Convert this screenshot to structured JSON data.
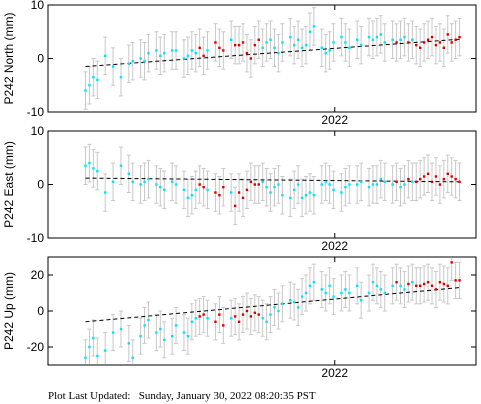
{
  "footer": {
    "label": "Plot Last Updated:",
    "timestamp": "Sunday, January 30, 2022 08:20:35 PST"
  },
  "colors": {
    "early": "#00e5ff",
    "recent": "#dd0000",
    "errorbar": "#c8c8c8",
    "trend": "#000000"
  },
  "chart_data": [
    {
      "type": "scatter",
      "ylabel": "P242 North (mm)",
      "xtick": "2022",
      "ylim": [
        -10,
        10
      ],
      "yticks": [
        -10,
        0,
        10
      ],
      "x_tick_position": 0.67,
      "trend": [
        -1.5,
        3.6
      ],
      "error": 3.5,
      "x": [
        0.03,
        0.04,
        0.05,
        0.06,
        0.08,
        0.1,
        0.12,
        0.14,
        0.15,
        0.17,
        0.18,
        0.19,
        0.21,
        0.22,
        0.23,
        0.25,
        0.26,
        0.28,
        0.29,
        0.3,
        0.31,
        0.32,
        0.33,
        0.34,
        0.36,
        0.37,
        0.38,
        0.4,
        0.41,
        0.42,
        0.43,
        0.44,
        0.45,
        0.46,
        0.47,
        0.48,
        0.49,
        0.5,
        0.51,
        0.52,
        0.53,
        0.55,
        0.56,
        0.57,
        0.58,
        0.59,
        0.6,
        0.61,
        0.63,
        0.64,
        0.65,
        0.66,
        0.68,
        0.69,
        0.7,
        0.72,
        0.73,
        0.75,
        0.76,
        0.77,
        0.78,
        0.79,
        0.81,
        0.82,
        0.83,
        0.84,
        0.85,
        0.86,
        0.87,
        0.88,
        0.89,
        0.9,
        0.91,
        0.92,
        0.93,
        0.94,
        0.95,
        0.96,
        0.97,
        0.98
      ],
      "y": [
        -6,
        -5,
        -3.5,
        -4,
        0.5,
        -1.5,
        -3.5,
        -1,
        -0.5,
        0,
        -0.5,
        1,
        1.5,
        0.5,
        1,
        1.5,
        1.5,
        0,
        0.5,
        1.5,
        1,
        2,
        0.5,
        1.5,
        3,
        2,
        1.5,
        3.5,
        2.5,
        2.5,
        3,
        1,
        0,
        2.5,
        3.5,
        2,
        3,
        3.5,
        2,
        1,
        3,
        4,
        2.5,
        3.5,
        2,
        2.5,
        5,
        6,
        2,
        1,
        1.5,
        3,
        4,
        3,
        2,
        3.5,
        2.5,
        4,
        3.5,
        4,
        4.5,
        3,
        3.5,
        3,
        3.5,
        4,
        3,
        3.5,
        2.5,
        2,
        3,
        3.5,
        4,
        2.5,
        3,
        2,
        4.5,
        3,
        3.5,
        4
      ],
      "groups": [
        "early",
        "early",
        "early",
        "early",
        "early",
        "early",
        "early",
        "early",
        "early",
        "early",
        "early",
        "early",
        "early",
        "early",
        "early",
        "early",
        "early",
        "early",
        "early",
        "early",
        "early",
        "recent",
        "recent",
        "early",
        "recent",
        "recent",
        "recent",
        "early",
        "recent",
        "recent",
        "recent",
        "recent",
        "recent",
        "recent",
        "recent",
        "early",
        "early",
        "early",
        "early",
        "early",
        "early",
        "early",
        "early",
        "early",
        "early",
        "early",
        "early",
        "early",
        "early",
        "early",
        "early",
        "early",
        "early",
        "early",
        "early",
        "early",
        "early",
        "early",
        "early",
        "early",
        "early",
        "early",
        "early",
        "recent",
        "early",
        "early",
        "recent",
        "early",
        "recent",
        "recent",
        "recent",
        "recent",
        "recent",
        "recent",
        "recent",
        "recent",
        "recent",
        "recent",
        "recent",
        "recent"
      ]
    },
    {
      "type": "scatter",
      "ylabel": "P242 East (mm)",
      "xtick": "2022",
      "ylim": [
        -10,
        10
      ],
      "yticks": [
        -10,
        0,
        10
      ],
      "x_tick_position": 0.67,
      "trend": [
        1.2,
        0.5
      ],
      "error": 3.5,
      "x": [
        0.03,
        0.04,
        0.05,
        0.06,
        0.08,
        0.1,
        0.12,
        0.14,
        0.15,
        0.17,
        0.18,
        0.19,
        0.21,
        0.22,
        0.23,
        0.25,
        0.26,
        0.28,
        0.29,
        0.3,
        0.31,
        0.32,
        0.33,
        0.34,
        0.36,
        0.37,
        0.38,
        0.4,
        0.41,
        0.42,
        0.43,
        0.44,
        0.45,
        0.46,
        0.47,
        0.48,
        0.49,
        0.5,
        0.51,
        0.52,
        0.53,
        0.55,
        0.56,
        0.57,
        0.58,
        0.59,
        0.6,
        0.61,
        0.63,
        0.64,
        0.65,
        0.66,
        0.68,
        0.69,
        0.7,
        0.72,
        0.73,
        0.75,
        0.76,
        0.77,
        0.78,
        0.79,
        0.81,
        0.82,
        0.83,
        0.84,
        0.85,
        0.86,
        0.87,
        0.88,
        0.89,
        0.9,
        0.91,
        0.92,
        0.93,
        0.94,
        0.95,
        0.96,
        0.97,
        0.98
      ],
      "y": [
        3.5,
        4,
        3,
        2.5,
        -1.5,
        0.5,
        3.5,
        2,
        0.5,
        0,
        0.5,
        1,
        0,
        -0.5,
        -1,
        0.5,
        0,
        -1,
        -2.5,
        -2,
        -1,
        0,
        -0.5,
        -1,
        -1.5,
        -2,
        -0.5,
        -1.5,
        -4,
        -1.5,
        -2.5,
        -1,
        0.5,
        0,
        0,
        0.5,
        -0.5,
        -1.5,
        -0.5,
        0,
        -2,
        -2.5,
        -1,
        0,
        -2.5,
        -2,
        -1.5,
        -2,
        0,
        0.5,
        0,
        -1,
        -1.5,
        -0.5,
        0,
        0,
        0.5,
        -0.5,
        0,
        0,
        1,
        0.5,
        0,
        0.5,
        -0.5,
        0,
        1,
        0.5,
        0.5,
        1,
        1.5,
        2,
        0.5,
        1.5,
        0,
        1,
        2,
        1.5,
        1,
        0.5
      ],
      "groups": [
        "early",
        "early",
        "early",
        "early",
        "early",
        "early",
        "early",
        "early",
        "early",
        "early",
        "early",
        "early",
        "early",
        "early",
        "early",
        "early",
        "early",
        "early",
        "early",
        "early",
        "early",
        "recent",
        "recent",
        "early",
        "recent",
        "recent",
        "recent",
        "early",
        "recent",
        "recent",
        "recent",
        "recent",
        "recent",
        "recent",
        "recent",
        "early",
        "early",
        "early",
        "early",
        "early",
        "early",
        "early",
        "early",
        "early",
        "early",
        "early",
        "early",
        "early",
        "early",
        "early",
        "early",
        "early",
        "early",
        "early",
        "early",
        "early",
        "early",
        "early",
        "early",
        "early",
        "early",
        "early",
        "early",
        "recent",
        "early",
        "early",
        "recent",
        "early",
        "recent",
        "recent",
        "recent",
        "recent",
        "recent",
        "recent",
        "recent",
        "recent",
        "recent",
        "recent",
        "recent",
        "recent"
      ]
    },
    {
      "type": "scatter",
      "ylabel": "P242 Up (mm)",
      "xtick": "2022",
      "ylim": [
        -30,
        30
      ],
      "yticks": [
        -20,
        0,
        20
      ],
      "x_tick_position": 0.67,
      "trend": [
        -6,
        13
      ],
      "error": 10,
      "x": [
        0.03,
        0.04,
        0.05,
        0.06,
        0.08,
        0.1,
        0.12,
        0.14,
        0.15,
        0.17,
        0.18,
        0.19,
        0.21,
        0.22,
        0.23,
        0.25,
        0.26,
        0.28,
        0.29,
        0.3,
        0.31,
        0.32,
        0.33,
        0.34,
        0.36,
        0.37,
        0.38,
        0.4,
        0.41,
        0.42,
        0.43,
        0.44,
        0.45,
        0.46,
        0.47,
        0.48,
        0.49,
        0.5,
        0.51,
        0.52,
        0.53,
        0.55,
        0.56,
        0.57,
        0.58,
        0.59,
        0.6,
        0.61,
        0.63,
        0.64,
        0.65,
        0.66,
        0.68,
        0.69,
        0.7,
        0.72,
        0.73,
        0.75,
        0.76,
        0.77,
        0.78,
        0.79,
        0.81,
        0.82,
        0.83,
        0.84,
        0.85,
        0.86,
        0.87,
        0.88,
        0.89,
        0.9,
        0.91,
        0.92,
        0.93,
        0.94,
        0.95,
        0.96,
        0.97,
        0.98
      ],
      "y": [
        -26,
        -20,
        -15,
        -25,
        -22,
        -12,
        -10,
        -18,
        -26,
        -14,
        -8,
        -5,
        -12,
        -10,
        -16,
        -14,
        -8,
        -12,
        -14,
        -6,
        -4,
        -3,
        -2,
        -4,
        -6,
        -2,
        -8,
        -4,
        -3,
        -6,
        -2,
        0,
        -3,
        -1,
        -2,
        -4,
        -6,
        -2,
        2,
        0,
        4,
        6,
        5,
        2,
        8,
        10,
        14,
        16,
        12,
        10,
        14,
        8,
        10,
        12,
        10,
        14,
        6,
        10,
        16,
        14,
        12,
        10,
        14,
        16,
        14,
        12,
        15,
        16,
        14,
        14,
        15,
        16,
        14,
        12,
        16,
        15,
        14,
        27,
        17,
        17
      ],
      "groups": [
        "early",
        "early",
        "early",
        "early",
        "early",
        "early",
        "early",
        "early",
        "early",
        "early",
        "early",
        "early",
        "early",
        "early",
        "early",
        "early",
        "early",
        "early",
        "early",
        "early",
        "early",
        "recent",
        "recent",
        "early",
        "recent",
        "recent",
        "recent",
        "early",
        "recent",
        "recent",
        "recent",
        "recent",
        "recent",
        "recent",
        "recent",
        "early",
        "early",
        "early",
        "early",
        "early",
        "early",
        "early",
        "early",
        "early",
        "early",
        "early",
        "early",
        "early",
        "early",
        "early",
        "early",
        "early",
        "early",
        "early",
        "early",
        "early",
        "early",
        "early",
        "early",
        "early",
        "early",
        "early",
        "early",
        "recent",
        "early",
        "early",
        "recent",
        "early",
        "recent",
        "recent",
        "recent",
        "recent",
        "recent",
        "recent",
        "recent",
        "recent",
        "recent",
        "recent",
        "recent",
        "recent"
      ]
    }
  ]
}
